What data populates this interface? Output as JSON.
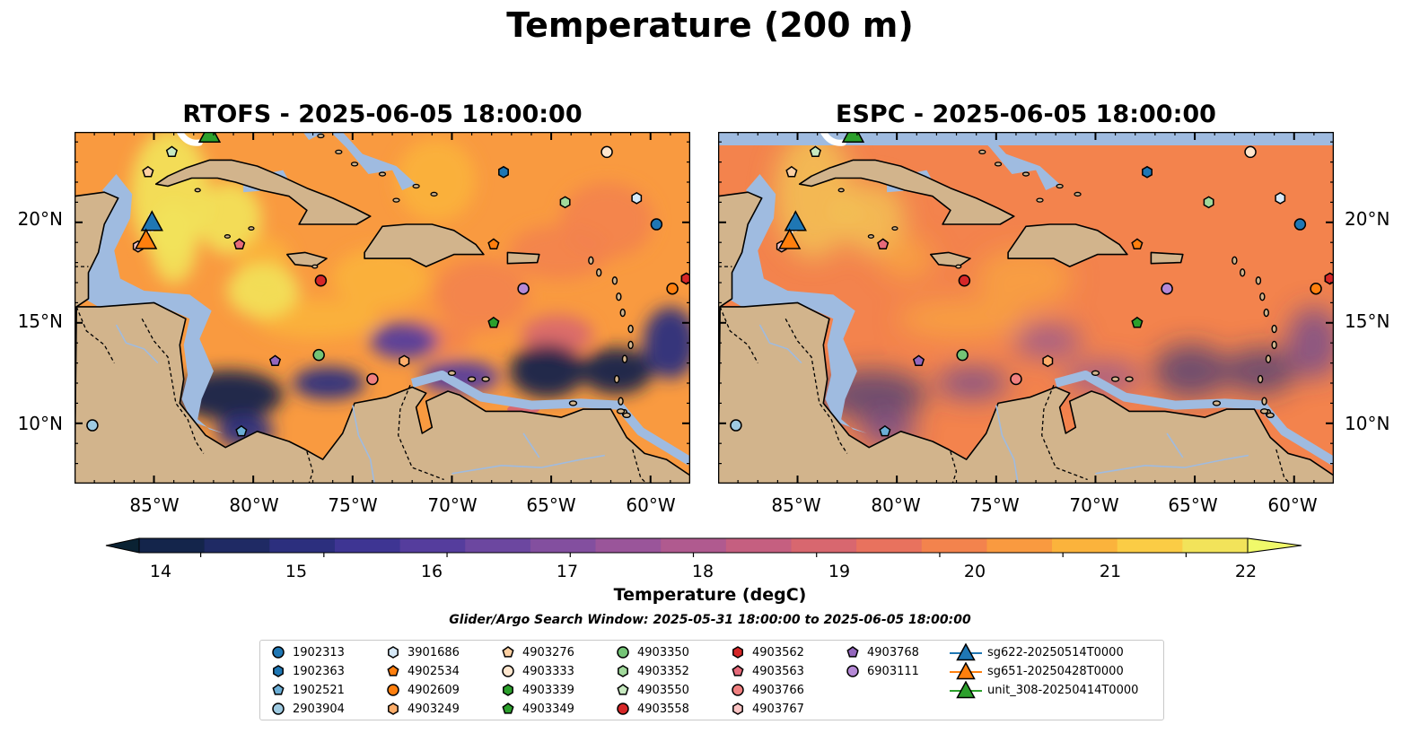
{
  "figure": {
    "title": "Temperature (200 m)",
    "panels": [
      {
        "id": "rtofs",
        "title": "RTOFS - 2025-06-05 18:00:00"
      },
      {
        "id": "espc",
        "title": "ESPC - 2025-06-05 18:00:00"
      }
    ],
    "x_ticks": [
      "85°W",
      "80°W",
      "75°W",
      "70°W",
      "65°W",
      "60°W"
    ],
    "y_ticks": [
      "20°N",
      "15°N",
      "10°N"
    ],
    "colorbar": {
      "label": "Temperature (degC)",
      "ticks": [
        "14",
        "15",
        "16",
        "17",
        "18",
        "19",
        "20",
        "21",
        "22"
      ],
      "range": [
        13.5,
        22.5
      ],
      "colors": [
        "#14254b",
        "#1f2a64",
        "#2c2f7e",
        "#3e3593",
        "#553d9d",
        "#6c47a0",
        "#834f9f",
        "#9a559a",
        "#b05a8f",
        "#c55f80",
        "#d8676f",
        "#e8725e",
        "#f3834d",
        "#f99a40",
        "#fbb33c",
        "#fbcc45",
        "#f2e35a"
      ],
      "under_color": "#0a2233",
      "over_color": "#f0f96a"
    },
    "search_window": "Glider/Argo Search Window: 2025-05-31 18:00:00 to 2025-06-05 18:00:00",
    "colors": {
      "land": "#d2b48c",
      "shelf": "#9fbbe0",
      "deep": "#0a2233"
    }
  },
  "legend": {
    "argo": [
      {
        "label": "1902313",
        "shape": "circle",
        "color": "#1f77b4"
      },
      {
        "label": "1902363",
        "shape": "hexagon",
        "color": "#1f77b4"
      },
      {
        "label": "1902521",
        "shape": "pentagon",
        "color": "#6baed6"
      },
      {
        "label": "2903904",
        "shape": "circle",
        "color": "#9ecae1"
      },
      {
        "label": "3901686",
        "shape": "hexagon",
        "color": "#d6e9f8"
      },
      {
        "label": "4902534",
        "shape": "pentagon",
        "color": "#ff7f0e"
      },
      {
        "label": "4902609",
        "shape": "circle",
        "color": "#ff7f0e"
      },
      {
        "label": "4903249",
        "shape": "hexagon",
        "color": "#fdae6b"
      },
      {
        "label": "4903276",
        "shape": "pentagon",
        "color": "#fdd0a2"
      },
      {
        "label": "4903333",
        "shape": "circle",
        "color": "#fee6ce"
      },
      {
        "label": "4903339",
        "shape": "hexagon",
        "color": "#2ca02c"
      },
      {
        "label": "4903349",
        "shape": "pentagon",
        "color": "#2ca02c"
      },
      {
        "label": "4903350",
        "shape": "circle",
        "color": "#74c476"
      },
      {
        "label": "4903352",
        "shape": "hexagon",
        "color": "#a1d99b"
      },
      {
        "label": "4903550",
        "shape": "pentagon",
        "color": "#c7e9c0"
      },
      {
        "label": "4903558",
        "shape": "circle",
        "color": "#d62728"
      },
      {
        "label": "4903562",
        "shape": "hexagon",
        "color": "#d62728"
      },
      {
        "label": "4903563",
        "shape": "pentagon",
        "color": "#e66a7a"
      },
      {
        "label": "4903766",
        "shape": "circle",
        "color": "#f08080"
      },
      {
        "label": "4903767",
        "shape": "hexagon",
        "color": "#fbc4c4"
      },
      {
        "label": "4903768",
        "shape": "pentagon",
        "color": "#9467bd"
      },
      {
        "label": "6903111",
        "shape": "circle",
        "color": "#b589d6"
      }
    ],
    "gliders": [
      {
        "label": "sg622-20250514T0000",
        "color": "#1f77b4"
      },
      {
        "label": "sg651-20250428T0000",
        "color": "#ff7f0e"
      },
      {
        "label": "unit_308-20250414T0000",
        "color": "#2ca02c"
      }
    ]
  },
  "chart_data": {
    "type": "map",
    "extent_lon": [
      -89,
      -58
    ],
    "extent_lat": [
      7,
      24.5
    ],
    "argo_floats": [
      {
        "id": "1902313",
        "lon": -59.7,
        "lat": 19.9
      },
      {
        "id": "1902363",
        "lon": -67.4,
        "lat": 22.5
      },
      {
        "id": "1902521",
        "lon": -80.6,
        "lat": 9.6
      },
      {
        "id": "2903904",
        "lon": -88.1,
        "lat": 9.9
      },
      {
        "id": "3901686",
        "lon": -60.7,
        "lat": 21.2
      },
      {
        "id": "4902534",
        "lon": -67.9,
        "lat": 18.9
      },
      {
        "id": "4902609",
        "lon": -58.9,
        "lat": 16.7
      },
      {
        "id": "4903249",
        "lon": -72.4,
        "lat": 13.1
      },
      {
        "id": "4903276",
        "lon": -85.3,
        "lat": 22.5
      },
      {
        "id": "4903333",
        "lon": -62.2,
        "lat": 23.5
      },
      {
        "id": "4903339",
        "lon": -58.2,
        "lat": 17.2
      },
      {
        "id": "4903349",
        "lon": -67.9,
        "lat": 15.0
      },
      {
        "id": "4903350",
        "lon": -76.7,
        "lat": 13.4
      },
      {
        "id": "4903352",
        "lon": -64.3,
        "lat": 21.0
      },
      {
        "id": "4903550",
        "lon": -84.1,
        "lat": 23.5
      },
      {
        "id": "4903558",
        "lon": -76.6,
        "lat": 17.1
      },
      {
        "id": "4903562",
        "lon": -58.2,
        "lat": 17.2
      },
      {
        "id": "4903563",
        "lon": -80.7,
        "lat": 18.9
      },
      {
        "id": "4903766",
        "lon": -74.0,
        "lat": 12.2
      },
      {
        "id": "4903767",
        "lon": -85.8,
        "lat": 18.8
      },
      {
        "id": "4903768",
        "lon": -78.9,
        "lat": 13.1
      },
      {
        "id": "6903111",
        "lon": -66.4,
        "lat": 16.7
      }
    ],
    "gliders": [
      {
        "id": "sg622-20250514T0000",
        "lon": -85.1,
        "lat": 20.0
      },
      {
        "id": "sg651-20250428T0000",
        "lon": -85.4,
        "lat": 19.1
      },
      {
        "id": "unit_308-20250414T0000",
        "lon": -82.2,
        "lat": 24.4
      }
    ]
  }
}
